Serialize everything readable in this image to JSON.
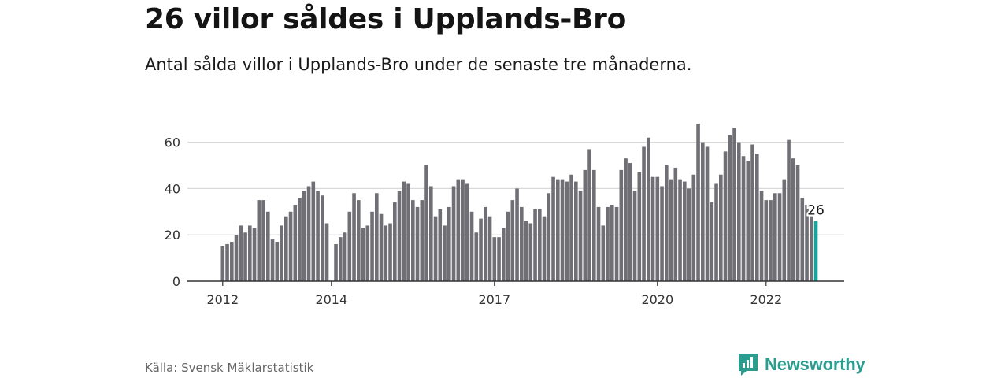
{
  "header": {
    "title": "26 villor såldes i Upplands-Bro",
    "subtitle": "Antal sålda villor i Upplands-Bro under de senaste tre månaderna."
  },
  "footer": {
    "source": "Källa: Svensk Mäklarstatistik",
    "brand": "Newsworthy",
    "brand_icon": "bar-chart-speech-bubble-icon"
  },
  "colors": {
    "bars": "#6f6f75",
    "highlight": "#1aa39a",
    "grid": "#d9d9d9",
    "axis": "#333333",
    "brand": "#2a9d8f"
  },
  "chart_data": {
    "type": "bar",
    "xlabel": "",
    "ylabel": "",
    "ylim": [
      0,
      70
    ],
    "yticks": [
      0,
      20,
      40,
      60
    ],
    "xticks": [
      "2012",
      "2014",
      "2017",
      "2020",
      "2022"
    ],
    "grid": true,
    "values": [
      15,
      16,
      17,
      20,
      24,
      21,
      24,
      23,
      35,
      35,
      30,
      18,
      17,
      24,
      28,
      30,
      33,
      36,
      39,
      41,
      43,
      39,
      37,
      25,
      null,
      16,
      19,
      21,
      30,
      38,
      35,
      23,
      24,
      30,
      38,
      29,
      24,
      25,
      34,
      39,
      43,
      42,
      35,
      32,
      35,
      50,
      41,
      28,
      31,
      24,
      32,
      41,
      44,
      44,
      42,
      30,
      21,
      27,
      32,
      28,
      19,
      19,
      23,
      30,
      35,
      40,
      32,
      26,
      25,
      31,
      31,
      28,
      38,
      45,
      44,
      44,
      43,
      46,
      43,
      39,
      48,
      57,
      48,
      32,
      24,
      32,
      33,
      32,
      48,
      53,
      51,
      39,
      47,
      58,
      62,
      45,
      45,
      41,
      50,
      44,
      49,
      44,
      43,
      40,
      46,
      68,
      60,
      58,
      34,
      42,
      46,
      56,
      63,
      66,
      60,
      54,
      52,
      59,
      55,
      39,
      35,
      35,
      38,
      38,
      44,
      61,
      53,
      50,
      36,
      33,
      28,
      26
    ],
    "highlight_last": true,
    "last_label": "26"
  }
}
